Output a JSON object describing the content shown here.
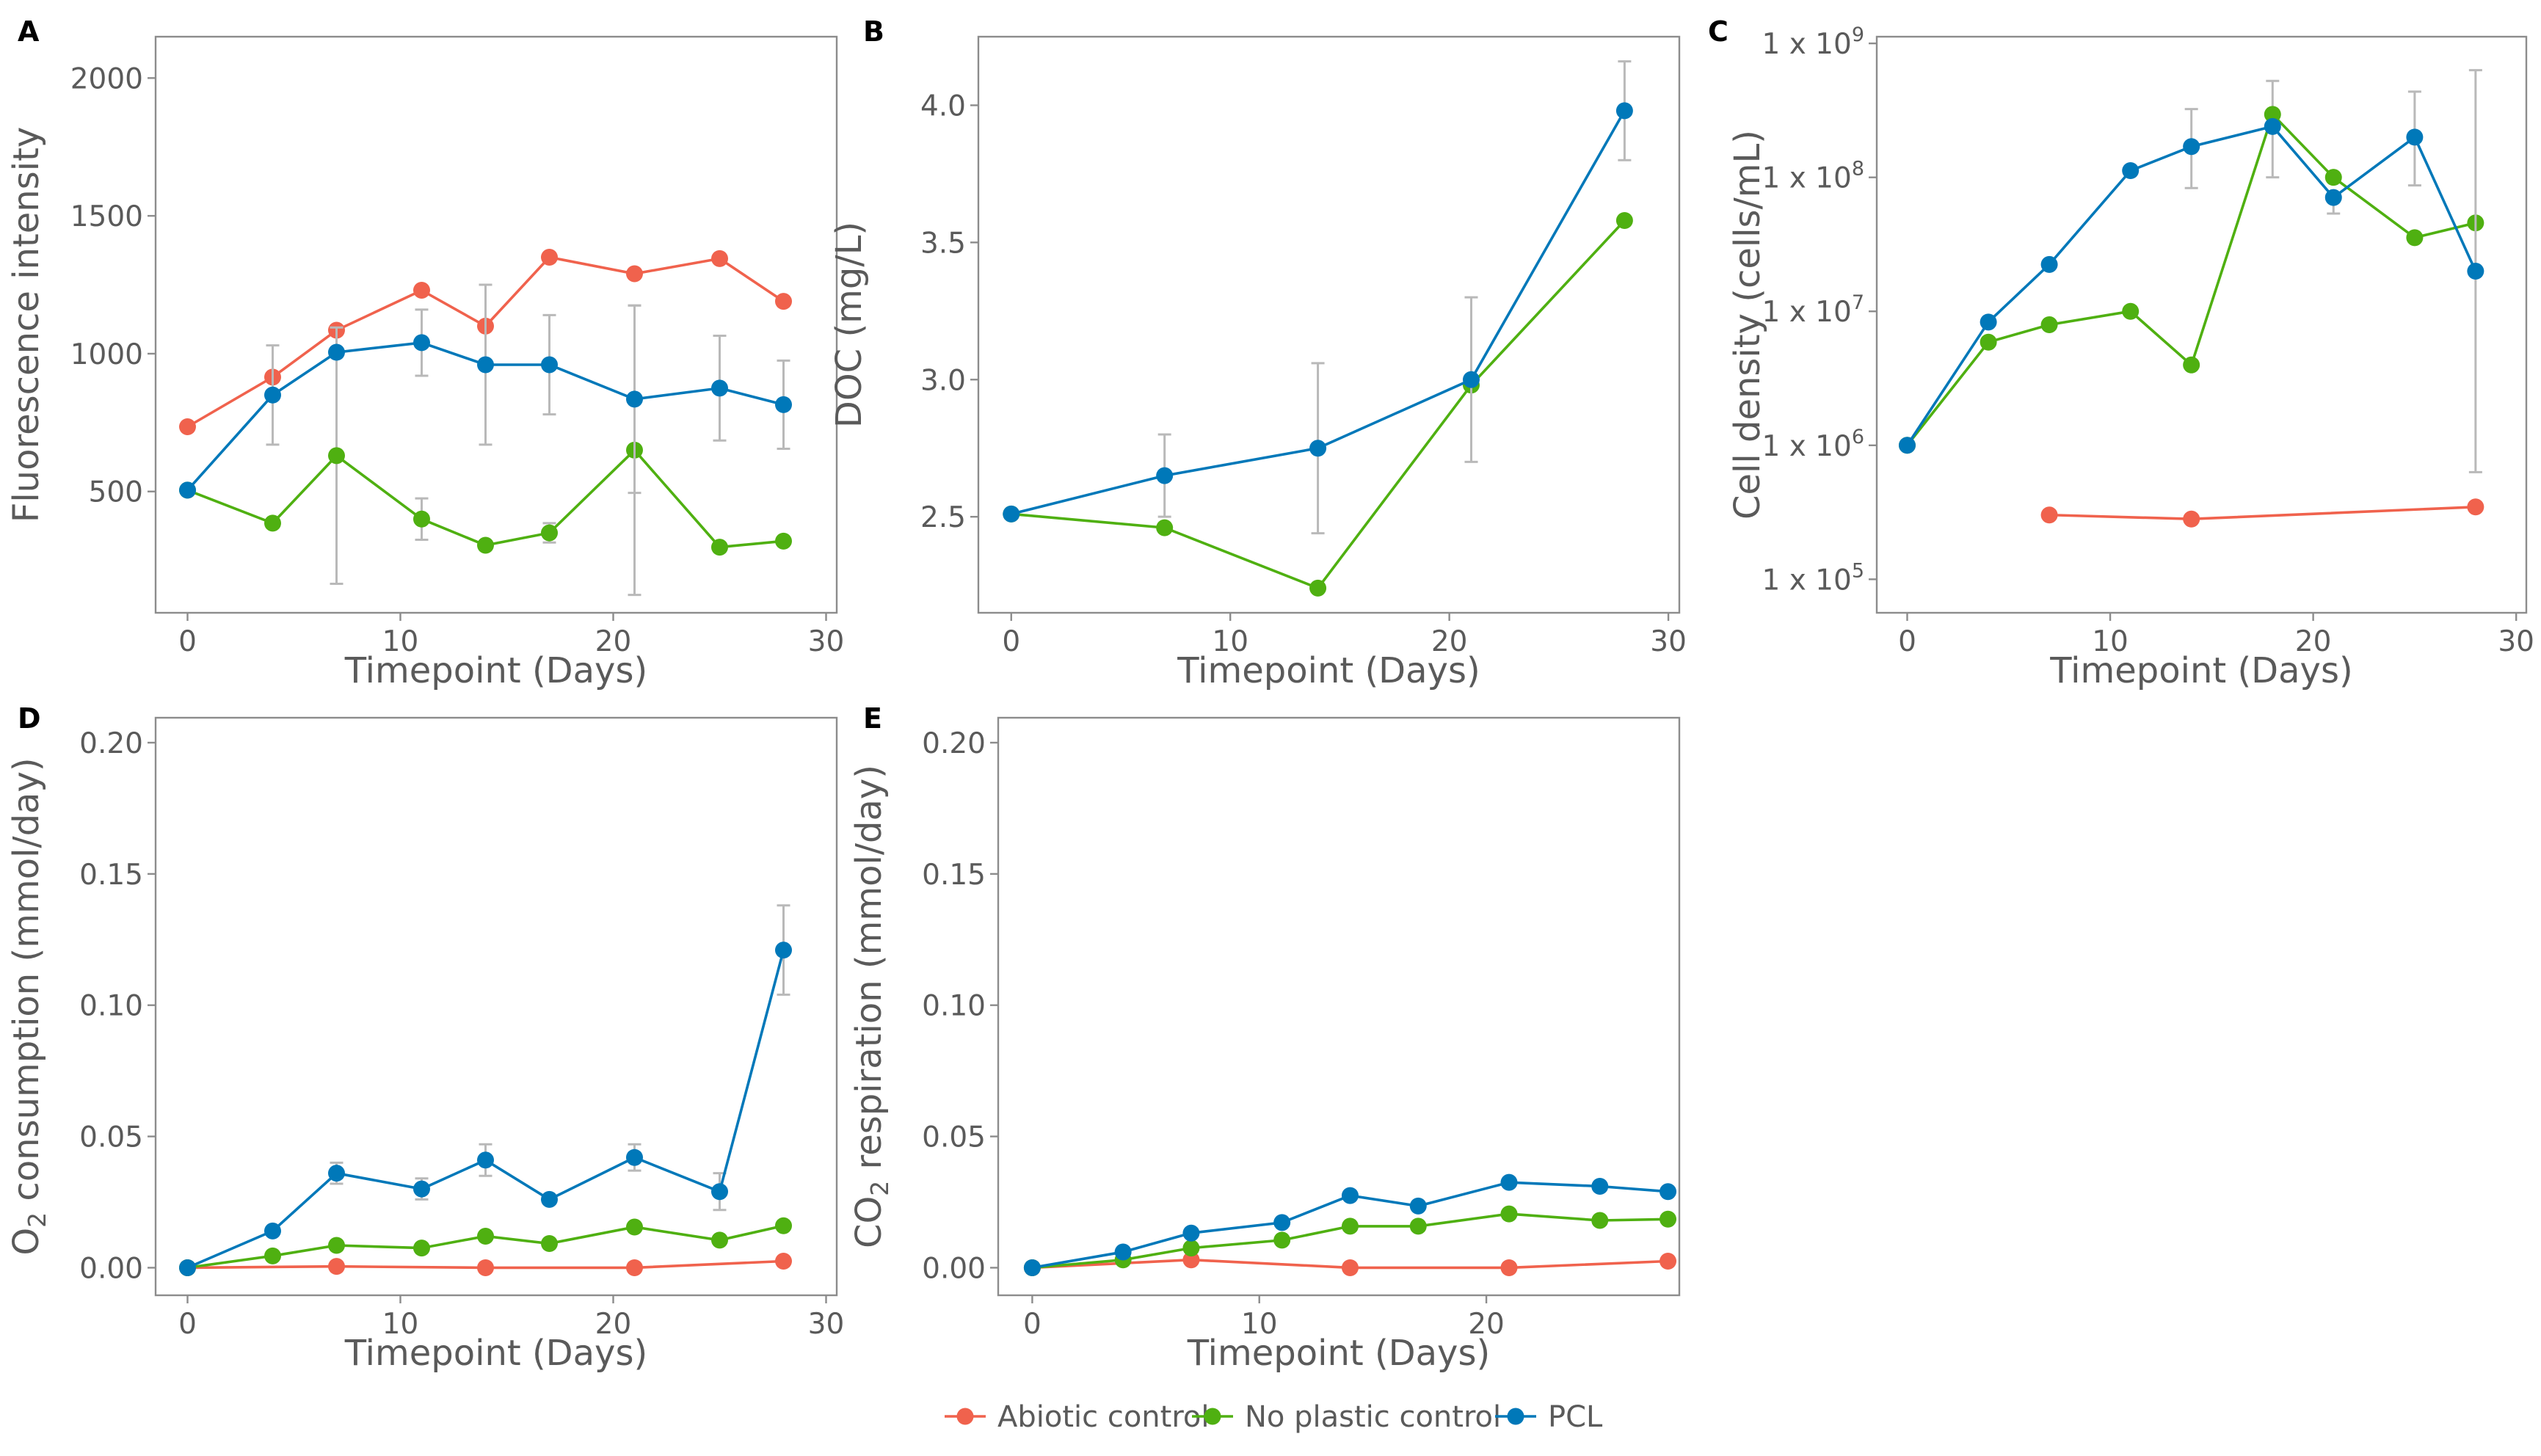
{
  "legend": {
    "items": [
      {
        "label": "Abiotic control",
        "color": "#F0624D"
      },
      {
        "label": "No plastic control",
        "color": "#4FB011"
      },
      {
        "label": "PCL",
        "color": "#0078B9"
      }
    ]
  },
  "chart_data": [
    {
      "panel": "A",
      "type": "line",
      "title": "",
      "xlabel": "Timepoint (Days)",
      "ylabel": "Fluorescence intensity",
      "xlim": [
        -1.5,
        30.5
      ],
      "ylim": [
        60,
        2150
      ],
      "xticks": [
        0,
        10,
        20,
        30
      ],
      "xtick_labels": [
        "0",
        "10",
        "20",
        "30"
      ],
      "yticks": [
        500,
        1000,
        1500,
        2000
      ],
      "ytick_labels": [
        "500",
        "1000",
        "1500",
        "2000"
      ],
      "grid": false,
      "series": [
        {
          "name": "Abiotic control",
          "x": [
            0,
            4,
            7,
            11,
            14,
            17,
            21,
            25,
            28
          ],
          "values": [
            735,
            915,
            1085,
            1230,
            1100,
            1350,
            1290,
            1345,
            1190
          ],
          "errors": [
            null,
            null,
            null,
            null,
            null,
            null,
            null,
            null,
            null
          ]
        },
        {
          "name": "No plastic control",
          "x": [
            0,
            4,
            7,
            11,
            14,
            17,
            21,
            25,
            28
          ],
          "values": [
            505,
            385,
            630,
            400,
            305,
            350,
            650,
            298,
            320
          ],
          "errors": [
            null,
            null,
            465,
            75,
            null,
            35,
            525,
            null,
            null
          ]
        },
        {
          "name": "PCL",
          "x": [
            0,
            4,
            7,
            11,
            14,
            17,
            21,
            25,
            28
          ],
          "values": [
            505,
            850,
            1005,
            1040,
            960,
            960,
            835,
            875,
            815
          ],
          "errors": [
            null,
            180,
            null,
            120,
            290,
            180,
            340,
            190,
            160
          ]
        }
      ]
    },
    {
      "panel": "B",
      "type": "line",
      "title": "",
      "xlabel": "Timepoint (Days)",
      "ylabel": "DOC (mg/L)",
      "xlim": [
        -1.5,
        30.5
      ],
      "ylim": [
        2.15,
        4.25
      ],
      "xticks": [
        0,
        10,
        20,
        30
      ],
      "xtick_labels": [
        "0",
        "10",
        "20",
        "30"
      ],
      "yticks": [
        2.5,
        3.0,
        3.5,
        4.0
      ],
      "ytick_labels": [
        "2.5",
        "3.0",
        "3.5",
        "4.0"
      ],
      "grid": false,
      "series": [
        {
          "name": "No plastic control",
          "x": [
            0,
            7,
            14,
            21,
            28
          ],
          "values": [
            2.51,
            2.46,
            2.24,
            2.98,
            3.58
          ],
          "errors": [
            null,
            null,
            null,
            null,
            null
          ]
        },
        {
          "name": "PCL",
          "x": [
            0,
            7,
            14,
            21,
            28
          ],
          "values": [
            2.51,
            2.65,
            2.75,
            3.0,
            3.98
          ],
          "errors": [
            null,
            0.15,
            0.31,
            0.3,
            0.18
          ]
        }
      ]
    },
    {
      "panel": "C",
      "type": "line",
      "title": "",
      "xlabel": "Timepoint (Days)",
      "ylabel": "Cell density (cells/mL)",
      "xlim": [
        -1.5,
        30.5
      ],
      "ylim_log10": [
        4.75,
        9.05
      ],
      "xticks": [
        0,
        10,
        20,
        30
      ],
      "xtick_labels": [
        "0",
        "10",
        "20",
        "30"
      ],
      "yticks_log10": [
        5,
        6,
        7,
        8,
        9
      ],
      "ytick_base": "1 x 10",
      "ytick_exponents": [
        "5",
        "6",
        "7",
        "8",
        "9"
      ],
      "grid": false,
      "series": [
        {
          "name": "Abiotic control",
          "x": [
            7,
            14,
            28
          ],
          "log10_values": [
            5.48,
            5.45,
            5.54
          ],
          "log10_err_low": [
            null,
            null,
            null
          ],
          "log10_err_high": [
            null,
            null,
            null
          ]
        },
        {
          "name": "No plastic control",
          "x": [
            0,
            4,
            7,
            11,
            14,
            18,
            21,
            25,
            28
          ],
          "log10_values": [
            6.0,
            6.77,
            6.9,
            7.0,
            6.6,
            8.47,
            8.0,
            7.55,
            7.66
          ],
          "log10_err_low": [
            null,
            null,
            null,
            null,
            null,
            8.0,
            null,
            null,
            null
          ],
          "log10_err_high": [
            null,
            null,
            null,
            null,
            null,
            8.72,
            null,
            null,
            null
          ]
        },
        {
          "name": "PCL",
          "x": [
            0,
            4,
            7,
            11,
            14,
            18,
            21,
            25,
            28
          ],
          "log10_values": [
            6.0,
            6.92,
            7.35,
            8.05,
            8.23,
            8.38,
            7.85,
            8.3,
            7.3
          ],
          "log10_err_low": [
            null,
            null,
            null,
            null,
            7.92,
            null,
            7.73,
            7.94,
            5.8
          ],
          "log10_err_high": [
            null,
            null,
            null,
            null,
            8.51,
            null,
            null,
            8.64,
            8.8
          ]
        }
      ]
    },
    {
      "panel": "D",
      "type": "line",
      "title": "",
      "xlabel": "Timepoint (Days)",
      "ylabel_main": "O",
      "ylabel_sub": "2",
      "ylabel_rest": " consumption (mmol/day)",
      "xlim": [
        -1.5,
        30.5
      ],
      "ylim": [
        -0.0105,
        0.2095
      ],
      "xticks": [
        0,
        10,
        20,
        30
      ],
      "xtick_labels": [
        "0",
        "10",
        "20",
        "30"
      ],
      "yticks": [
        0.0,
        0.05,
        0.1,
        0.15,
        0.2
      ],
      "ytick_labels": [
        "0.00",
        "0.05",
        "0.10",
        "0.15",
        "0.20"
      ],
      "grid": false,
      "series": [
        {
          "name": "Abiotic control",
          "x": [
            0,
            7,
            14,
            21,
            28
          ],
          "values": [
            0.0,
            0.0005,
            0.0,
            0.0,
            0.0025
          ],
          "errors": [
            null,
            null,
            null,
            null,
            null
          ]
        },
        {
          "name": "No plastic control",
          "x": [
            0,
            4,
            7,
            11,
            14,
            17,
            21,
            25,
            28
          ],
          "values": [
            0.0,
            0.0045,
            0.0085,
            0.0075,
            0.012,
            0.0092,
            0.0155,
            0.0105,
            0.016
          ],
          "errors": [
            null,
            null,
            null,
            null,
            null,
            null,
            null,
            null,
            null
          ]
        },
        {
          "name": "PCL",
          "x": [
            0,
            4,
            7,
            11,
            14,
            17,
            21,
            25,
            28
          ],
          "values": [
            0.0,
            0.014,
            0.036,
            0.03,
            0.041,
            0.026,
            0.042,
            0.029,
            0.121
          ],
          "errors": [
            null,
            null,
            0.004,
            0.004,
            0.006,
            null,
            0.005,
            0.007,
            0.017
          ]
        }
      ]
    },
    {
      "panel": "E",
      "type": "line",
      "title": "",
      "xlabel": "Timepoint (Days)",
      "ylabel_main": "CO",
      "ylabel_sub": "2",
      "ylabel_rest": " respiration (mmol/day)",
      "xlim": [
        -1.5,
        28.5
      ],
      "ylim": [
        -0.0105,
        0.2095
      ],
      "xticks": [
        0,
        10,
        20
      ],
      "xtick_labels": [
        "0",
        "10",
        "20"
      ],
      "yticks": [
        0.0,
        0.05,
        0.1,
        0.15,
        0.2
      ],
      "ytick_labels": [
        "0.00",
        "0.05",
        "0.10",
        "0.15",
        "0.20"
      ],
      "grid": false,
      "series": [
        {
          "name": "Abiotic control",
          "x": [
            0,
            7,
            14,
            21,
            28
          ],
          "values": [
            0.0,
            0.003,
            0.0,
            0.0,
            0.0025
          ],
          "errors": [
            null,
            null,
            null,
            null,
            null
          ]
        },
        {
          "name": "No plastic control",
          "x": [
            0,
            4,
            7,
            11,
            14,
            17,
            21,
            25,
            28
          ],
          "values": [
            0.0,
            0.003,
            0.0075,
            0.0105,
            0.0158,
            0.0158,
            0.0205,
            0.018,
            0.0185
          ],
          "errors": [
            null,
            null,
            null,
            null,
            null,
            null,
            null,
            null,
            null
          ]
        },
        {
          "name": "PCL",
          "x": [
            0,
            4,
            7,
            11,
            14,
            17,
            21,
            25,
            28
          ],
          "values": [
            0.0,
            0.006,
            0.0132,
            0.0172,
            0.0275,
            0.0235,
            0.0325,
            0.031,
            0.029
          ],
          "errors": [
            null,
            null,
            null,
            null,
            null,
            null,
            null,
            null,
            null
          ]
        }
      ]
    }
  ]
}
